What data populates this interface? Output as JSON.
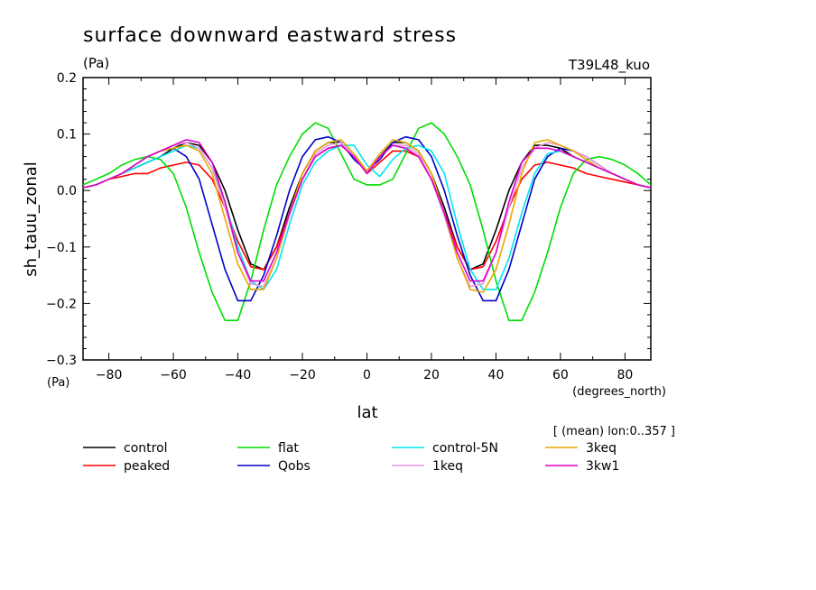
{
  "chart_data": {
    "type": "line",
    "title": "surface downward eastward stress",
    "units_label": "(Pa)",
    "run_label": "T39L48_kuo",
    "xlabel": "lat",
    "x_units": "(degrees_north)",
    "ylabel": "sh_tauu_zonal",
    "y_units": "(Pa)",
    "averaging_note": "[ (mean) lon:0..357 ]",
    "xlim": [
      -88,
      88
    ],
    "ylim": [
      -0.3,
      0.2
    ],
    "x_ticks": [
      -80,
      -60,
      -40,
      -20,
      0,
      20,
      40,
      60,
      80
    ],
    "x_tick_labels": [
      "−80",
      "−60",
      "−40",
      "−20",
      "0",
      "20",
      "40",
      "60",
      "80"
    ],
    "y_ticks": [
      -0.3,
      -0.2,
      -0.1,
      0.0,
      0.1,
      0.2
    ],
    "y_tick_labels": [
      "−0.3",
      "−0.2",
      "−0.1",
      "0.0",
      "0.1",
      "0.2"
    ],
    "x": [
      -88,
      -84,
      -80,
      -76,
      -72,
      -68,
      -64,
      -60,
      -56,
      -52,
      -48,
      -44,
      -40,
      -36,
      -32,
      -28,
      -24,
      -20,
      -16,
      -12,
      -8,
      -4,
      0,
      4,
      8,
      12,
      16,
      20,
      24,
      28,
      32,
      36,
      40,
      44,
      48,
      52,
      56,
      60,
      64,
      68,
      72,
      76,
      80,
      84,
      88
    ],
    "series": [
      {
        "name": "control",
        "color": "#000000",
        "values": [
          0.005,
          0.01,
          0.02,
          0.03,
          0.04,
          0.05,
          0.06,
          0.075,
          0.085,
          0.08,
          0.05,
          0.0,
          -0.07,
          -0.13,
          -0.14,
          -0.1,
          -0.03,
          0.03,
          0.07,
          0.085,
          0.085,
          0.06,
          0.035,
          0.06,
          0.085,
          0.085,
          0.07,
          0.03,
          -0.03,
          -0.1,
          -0.14,
          -0.13,
          -0.07,
          0.0,
          0.05,
          0.08,
          0.08,
          0.075,
          0.06,
          0.05,
          0.04,
          0.03,
          0.02,
          0.01,
          0.005
        ]
      },
      {
        "name": "peaked",
        "color": "#ff0000",
        "values": [
          0.005,
          0.01,
          0.02,
          0.025,
          0.03,
          0.03,
          0.04,
          0.045,
          0.05,
          0.045,
          0.02,
          -0.03,
          -0.09,
          -0.135,
          -0.14,
          -0.1,
          -0.04,
          0.02,
          0.06,
          0.075,
          0.08,
          0.06,
          0.03,
          0.05,
          0.07,
          0.07,
          0.06,
          0.02,
          -0.04,
          -0.1,
          -0.14,
          -0.135,
          -0.09,
          -0.03,
          0.02,
          0.045,
          0.05,
          0.045,
          0.04,
          0.03,
          0.025,
          0.02,
          0.015,
          0.01,
          0.005
        ]
      },
      {
        "name": "flat",
        "color": "#00dd00",
        "values": [
          0.01,
          0.02,
          0.03,
          0.045,
          0.055,
          0.06,
          0.055,
          0.03,
          -0.03,
          -0.11,
          -0.18,
          -0.23,
          -0.23,
          -0.16,
          -0.07,
          0.01,
          0.06,
          0.1,
          0.12,
          0.11,
          0.065,
          0.02,
          0.01,
          0.01,
          0.02,
          0.065,
          0.11,
          0.12,
          0.1,
          0.06,
          0.01,
          -0.07,
          -0.16,
          -0.23,
          -0.23,
          -0.18,
          -0.11,
          -0.03,
          0.03,
          0.055,
          0.06,
          0.055,
          0.045,
          0.03,
          0.01
        ]
      },
      {
        "name": "Qobs",
        "color": "#0000cc",
        "values": [
          0.005,
          0.01,
          0.02,
          0.03,
          0.045,
          0.06,
          0.07,
          0.075,
          0.06,
          0.02,
          -0.06,
          -0.14,
          -0.195,
          -0.195,
          -0.15,
          -0.08,
          0.0,
          0.06,
          0.09,
          0.095,
          0.085,
          0.055,
          0.035,
          0.055,
          0.085,
          0.095,
          0.09,
          0.06,
          0.0,
          -0.08,
          -0.15,
          -0.195,
          -0.195,
          -0.14,
          -0.06,
          0.02,
          0.06,
          0.075,
          0.07,
          0.06,
          0.045,
          0.03,
          0.02,
          0.01,
          0.005
        ]
      },
      {
        "name": "control-5N",
        "color": "#00e5ee",
        "values": [
          0.005,
          0.01,
          0.02,
          0.03,
          0.04,
          0.05,
          0.06,
          0.07,
          0.08,
          0.075,
          0.04,
          -0.02,
          -0.1,
          -0.16,
          -0.175,
          -0.14,
          -0.06,
          0.01,
          0.05,
          0.07,
          0.08,
          0.08,
          0.045,
          0.025,
          0.055,
          0.075,
          0.08,
          0.07,
          0.03,
          -0.06,
          -0.14,
          -0.175,
          -0.175,
          -0.12,
          -0.04,
          0.03,
          0.065,
          0.07,
          0.06,
          0.05,
          0.04,
          0.03,
          0.02,
          0.01,
          0.005
        ]
      },
      {
        "name": "1keq",
        "color": "#ee99dd",
        "values": [
          0.005,
          0.01,
          0.02,
          0.03,
          0.045,
          0.06,
          0.07,
          0.08,
          0.085,
          0.075,
          0.04,
          -0.03,
          -0.11,
          -0.165,
          -0.17,
          -0.12,
          -0.045,
          0.02,
          0.065,
          0.08,
          0.085,
          0.06,
          0.035,
          0.06,
          0.08,
          0.08,
          0.065,
          0.02,
          -0.045,
          -0.12,
          -0.17,
          -0.165,
          -0.11,
          -0.03,
          0.04,
          0.075,
          0.085,
          0.08,
          0.07,
          0.06,
          0.045,
          0.03,
          0.02,
          0.01,
          0.005
        ]
      },
      {
        "name": "3keq",
        "color": "#e8a800",
        "values": [
          0.005,
          0.01,
          0.02,
          0.03,
          0.045,
          0.06,
          0.07,
          0.075,
          0.08,
          0.07,
          0.03,
          -0.05,
          -0.13,
          -0.175,
          -0.175,
          -0.12,
          -0.04,
          0.03,
          0.07,
          0.085,
          0.09,
          0.065,
          0.035,
          0.065,
          0.09,
          0.085,
          0.07,
          0.03,
          -0.04,
          -0.12,
          -0.175,
          -0.18,
          -0.14,
          -0.06,
          0.03,
          0.085,
          0.09,
          0.08,
          0.07,
          0.055,
          0.04,
          0.03,
          0.02,
          0.01,
          0.005
        ]
      },
      {
        "name": "3kw1",
        "color": "#dd00cc",
        "values": [
          0.005,
          0.01,
          0.02,
          0.03,
          0.045,
          0.06,
          0.07,
          0.08,
          0.09,
          0.085,
          0.05,
          -0.02,
          -0.11,
          -0.16,
          -0.16,
          -0.11,
          -0.04,
          0.02,
          0.06,
          0.075,
          0.08,
          0.06,
          0.03,
          0.06,
          0.08,
          0.075,
          0.06,
          0.02,
          -0.04,
          -0.11,
          -0.16,
          -0.16,
          -0.11,
          -0.02,
          0.05,
          0.075,
          0.075,
          0.07,
          0.06,
          0.05,
          0.04,
          0.03,
          0.02,
          0.01,
          0.005
        ]
      }
    ]
  }
}
